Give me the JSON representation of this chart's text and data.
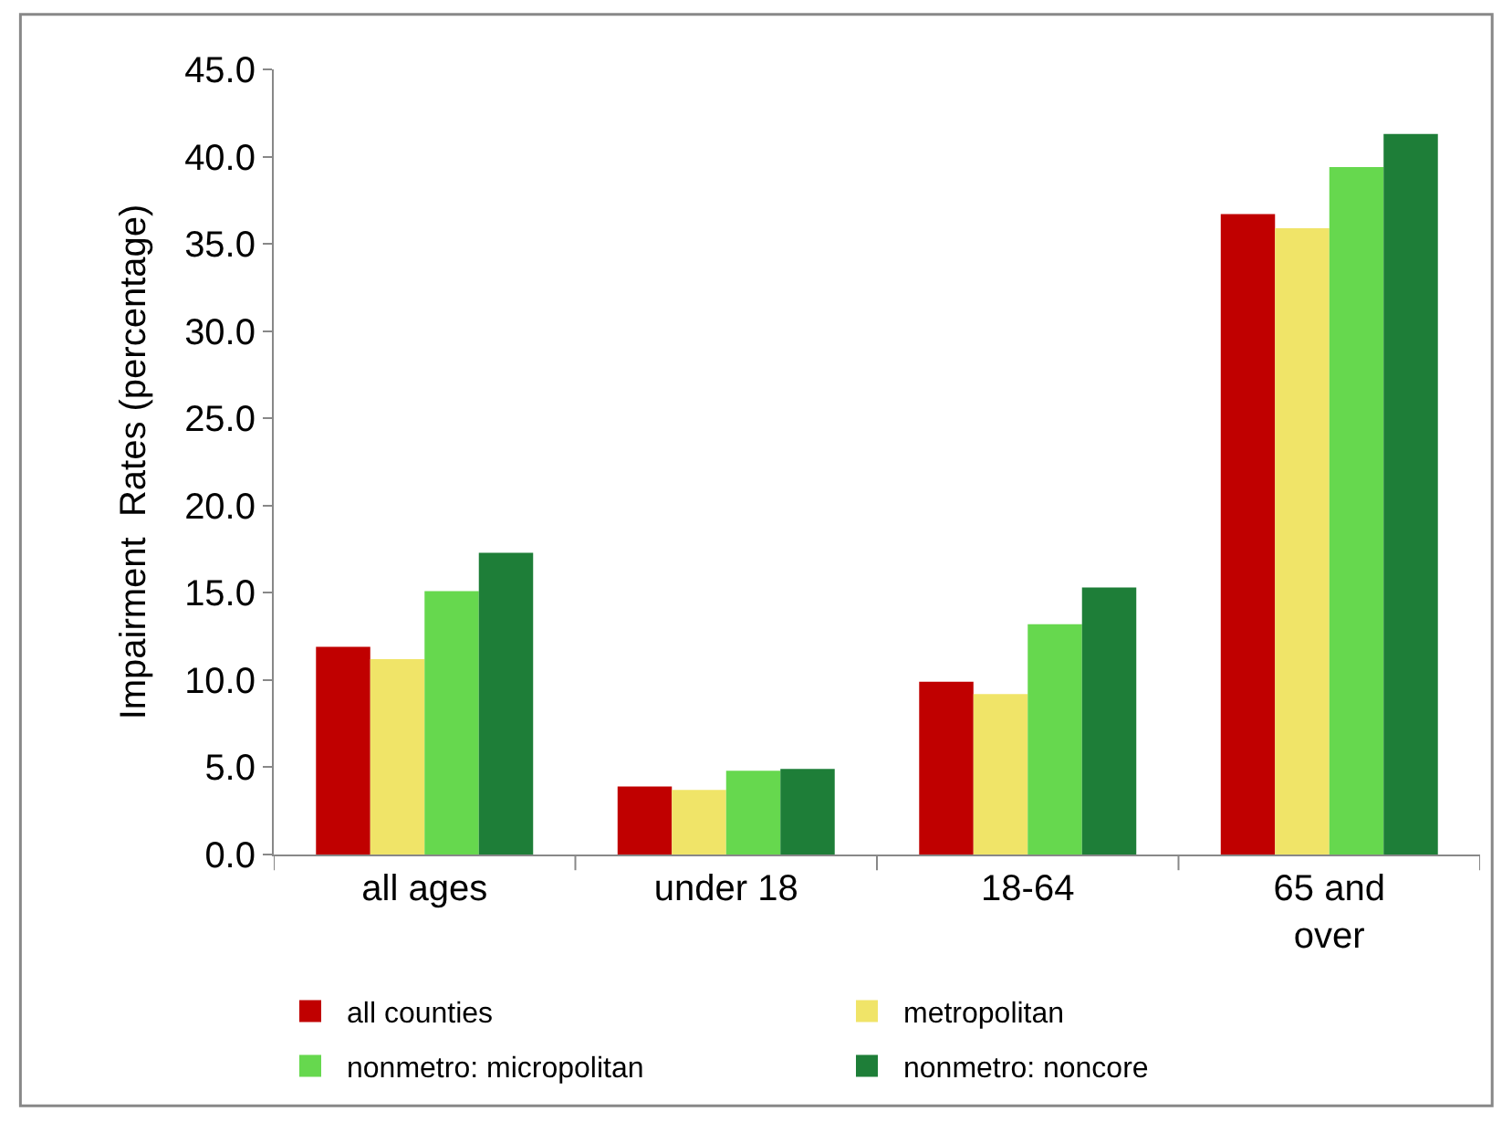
{
  "chart_data": {
    "type": "bar",
    "ylabel": "Impairment  Rates (percentage)",
    "categories": [
      "all ages",
      "under 18",
      "18-64",
      "65 and over"
    ],
    "series": [
      {
        "name": "all counties",
        "color": "#c00000",
        "values": [
          11.9,
          3.9,
          9.9,
          36.7
        ]
      },
      {
        "name": "metropolitan",
        "color": "#f0e468",
        "values": [
          11.2,
          3.7,
          9.2,
          35.9
        ]
      },
      {
        "name": "nonmetro: micropolitan",
        "color": "#66d84e",
        "values": [
          15.1,
          4.8,
          13.2,
          39.4
        ]
      },
      {
        "name": "nonmetro: noncore",
        "color": "#1e7e38",
        "values": [
          17.3,
          4.9,
          15.3,
          41.3
        ]
      }
    ],
    "ylim": [
      0,
      45
    ],
    "yticks": [
      {
        "value": 0,
        "label": "0.0"
      },
      {
        "value": 5,
        "label": "5.0"
      },
      {
        "value": 10,
        "label": "10.0"
      },
      {
        "value": 15,
        "label": "15.0"
      },
      {
        "value": 20,
        "label": "20.0"
      },
      {
        "value": 25,
        "label": "25.0"
      },
      {
        "value": 30,
        "label": "30.0"
      },
      {
        "value": 35,
        "label": "35.0"
      },
      {
        "value": 40,
        "label": "40.0"
      },
      {
        "value": 45,
        "label": "45.0"
      }
    ],
    "legend": "bottom"
  }
}
